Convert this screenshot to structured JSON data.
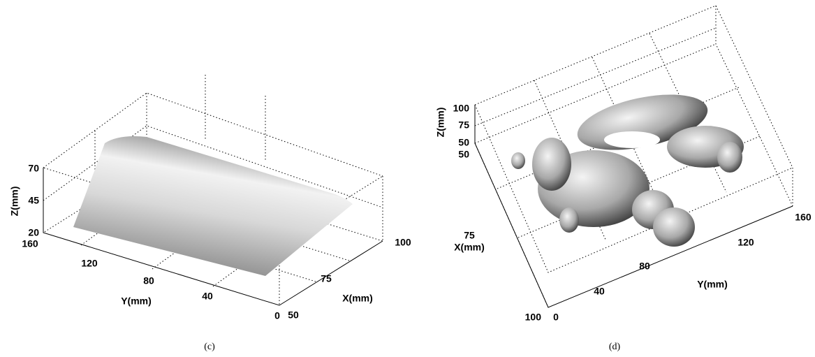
{
  "panels": [
    {
      "caption": "(c)",
      "z_label": "Z(mm)",
      "z_ticks": [
        20,
        45,
        70
      ],
      "y_label": "Y(mm)",
      "y_ticks": [
        0,
        40,
        80,
        120,
        160
      ],
      "x_label": "X(mm)",
      "x_ticks": [
        50,
        75,
        100
      ]
    },
    {
      "caption": "(d)",
      "z_label": "Z(mm)",
      "z_ticks": [
        50,
        75,
        100
      ],
      "y_label": "Y(mm)",
      "y_ticks": [
        0,
        40,
        80,
        120,
        160
      ],
      "x_label": "X(mm)",
      "x_ticks": [
        50,
        75,
        100
      ]
    }
  ]
}
